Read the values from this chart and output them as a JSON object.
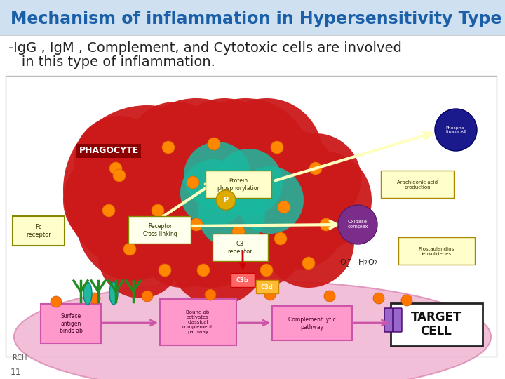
{
  "title": "Mechanism of inflammation in Hypersensitivity Type II:",
  "title_color": "#1a5fa8",
  "title_fontsize": 17,
  "subtitle_line1": "-IgG , IgM , Complement, and Cytotoxic cells are involved",
  "subtitle_line2": "   in this type of inflammation.",
  "subtitle_fontsize": 14,
  "subtitle_color": "#222222",
  "slide_bg": "#ffffff",
  "header_bg": "#cfe0f0",
  "footer_number": "11"
}
